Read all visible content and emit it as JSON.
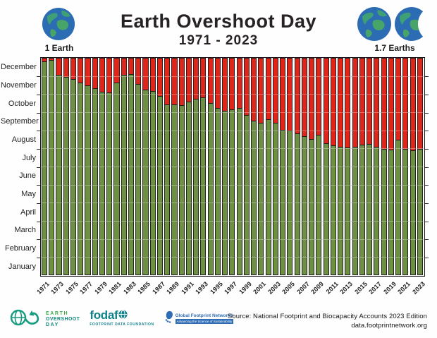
{
  "header": {
    "title": "Earth Overshoot Day",
    "subtitle": "1971 - 2023",
    "left_earths_label": "1 Earth",
    "right_earths_label": "1.7 Earths"
  },
  "footer": {
    "source_line1": "Source: National Footprint and Biocapacity Accounts 2023 Edition",
    "source_line2": "data.footprintnetwork.org",
    "eod_logo": {
      "line1": "EARTH",
      "line2": "OVERSHOOT",
      "line3": "DAY"
    },
    "fodafo_logo": {
      "word": "fodaf",
      "tagline": "FOOTPRINT DATA FOUNDATION"
    },
    "gfn_logo": {
      "name": "Global Footprint Network®",
      "tagline": "Advancing the Science of Sustainability"
    }
  },
  "colors": {
    "bar_green": "#6d9043",
    "bar_red": "#e0251a",
    "frame": "#161616",
    "globe_ocean": "#2b6cb3",
    "globe_land": "#3f9f76",
    "title_text": "#272324",
    "eod_green": "#3dae49",
    "eod_teal": "#0d8a7c",
    "fodafo_teal": "#0f828a",
    "gfn_blue": "#2e6db6"
  },
  "chart_data": {
    "type": "bar",
    "stacked": true,
    "title": "Earth Overshoot Day",
    "subtitle": "1971 - 2023",
    "description": "Stacked bars per year: green = day of year up to Earth Overshoot Day, red = remainder of the year (overshoot).",
    "units": "day of year (1-365) mapped to months on the y-axis",
    "ylim": [
      "January 1",
      "December 31"
    ],
    "grid": true,
    "legend": "none shown",
    "y_axis_months_top_to_bottom": [
      "December",
      "November",
      "October",
      "September",
      "August",
      "July",
      "June",
      "May",
      "April",
      "March",
      "February",
      "January"
    ],
    "x_axis_tick_years": [
      1971,
      1973,
      1975,
      1977,
      1979,
      1981,
      1983,
      1985,
      1987,
      1989,
      1991,
      1993,
      1995,
      1997,
      1999,
      2001,
      2003,
      2005,
      2007,
      2009,
      2011,
      2013,
      2015,
      2017,
      2019,
      2021,
      2023
    ],
    "series": [
      {
        "year": 1971,
        "overshoot_date": "December 26",
        "day_of_year": 360
      },
      {
        "year": 1972,
        "overshoot_date": "December 29",
        "day_of_year": 363
      },
      {
        "year": 1973,
        "overshoot_date": "December 3",
        "day_of_year": 337
      },
      {
        "year": 1974,
        "overshoot_date": "November 30",
        "day_of_year": 334
      },
      {
        "year": 1975,
        "overshoot_date": "November 26",
        "day_of_year": 330
      },
      {
        "year": 1976,
        "overshoot_date": "November 21",
        "day_of_year": 325
      },
      {
        "year": 1977,
        "overshoot_date": "November 16",
        "day_of_year": 320
      },
      {
        "year": 1978,
        "overshoot_date": "November 11",
        "day_of_year": 315
      },
      {
        "year": 1979,
        "overshoot_date": "November 5",
        "day_of_year": 309
      },
      {
        "year": 1980,
        "overshoot_date": "November 4",
        "day_of_year": 308
      },
      {
        "year": 1981,
        "overshoot_date": "November 20",
        "day_of_year": 324
      },
      {
        "year": 1982,
        "overshoot_date": "December 3",
        "day_of_year": 337
      },
      {
        "year": 1983,
        "overshoot_date": "December 5",
        "day_of_year": 339
      },
      {
        "year": 1984,
        "overshoot_date": "November 18",
        "day_of_year": 322
      },
      {
        "year": 1985,
        "overshoot_date": "November 8",
        "day_of_year": 312
      },
      {
        "year": 1986,
        "overshoot_date": "November 6",
        "day_of_year": 310
      },
      {
        "year": 1987,
        "overshoot_date": "October 29",
        "day_of_year": 302
      },
      {
        "year": 1988,
        "overshoot_date": "October 15",
        "day_of_year": 288
      },
      {
        "year": 1989,
        "overshoot_date": "October 14",
        "day_of_year": 287
      },
      {
        "year": 1990,
        "overshoot_date": "October 13",
        "day_of_year": 286
      },
      {
        "year": 1991,
        "overshoot_date": "October 19",
        "day_of_year": 292
      },
      {
        "year": 1992,
        "overshoot_date": "October 24",
        "day_of_year": 297
      },
      {
        "year": 1993,
        "overshoot_date": "October 26",
        "day_of_year": 299
      },
      {
        "year": 1994,
        "overshoot_date": "October 17",
        "day_of_year": 290
      },
      {
        "year": 1995,
        "overshoot_date": "October 8",
        "day_of_year": 281
      },
      {
        "year": 1996,
        "overshoot_date": "October 4",
        "day_of_year": 277
      },
      {
        "year": 1997,
        "overshoot_date": "October 6",
        "day_of_year": 279
      },
      {
        "year": 1998,
        "overshoot_date": "October 8",
        "day_of_year": 281
      },
      {
        "year": 1999,
        "overshoot_date": "September 26",
        "day_of_year": 269
      },
      {
        "year": 2000,
        "overshoot_date": "September 17",
        "day_of_year": 260
      },
      {
        "year": 2001,
        "overshoot_date": "September 13",
        "day_of_year": 256
      },
      {
        "year": 2002,
        "overshoot_date": "September 19",
        "day_of_year": 262
      },
      {
        "year": 2003,
        "overshoot_date": "September 14",
        "day_of_year": 257
      },
      {
        "year": 2004,
        "overshoot_date": "September 2",
        "day_of_year": 245
      },
      {
        "year": 2005,
        "overshoot_date": "August 31",
        "day_of_year": 243
      },
      {
        "year": 2006,
        "overshoot_date": "August 26",
        "day_of_year": 238
      },
      {
        "year": 2007,
        "overshoot_date": "August 22",
        "day_of_year": 234
      },
      {
        "year": 2008,
        "overshoot_date": "August 17",
        "day_of_year": 229
      },
      {
        "year": 2009,
        "overshoot_date": "August 24",
        "day_of_year": 236
      },
      {
        "year": 2010,
        "overshoot_date": "August 10",
        "day_of_year": 222
      },
      {
        "year": 2011,
        "overshoot_date": "August 6",
        "day_of_year": 218
      },
      {
        "year": 2012,
        "overshoot_date": "August 4",
        "day_of_year": 216
      },
      {
        "year": 2013,
        "overshoot_date": "August 3",
        "day_of_year": 215
      },
      {
        "year": 2014,
        "overshoot_date": "August 4",
        "day_of_year": 216
      },
      {
        "year": 2015,
        "overshoot_date": "August 7",
        "day_of_year": 219
      },
      {
        "year": 2016,
        "overshoot_date": "August 9",
        "day_of_year": 221
      },
      {
        "year": 2017,
        "overshoot_date": "August 4",
        "day_of_year": 216
      },
      {
        "year": 2018,
        "overshoot_date": "July 31",
        "day_of_year": 212
      },
      {
        "year": 2019,
        "overshoot_date": "July 30",
        "day_of_year": 211
      },
      {
        "year": 2020,
        "overshoot_date": "August 16",
        "day_of_year": 228
      },
      {
        "year": 2021,
        "overshoot_date": "July 31",
        "day_of_year": 212
      },
      {
        "year": 2022,
        "overshoot_date": "July 29",
        "day_of_year": 210
      },
      {
        "year": 2023,
        "overshoot_date": "July 31",
        "day_of_year": 212
      }
    ]
  }
}
